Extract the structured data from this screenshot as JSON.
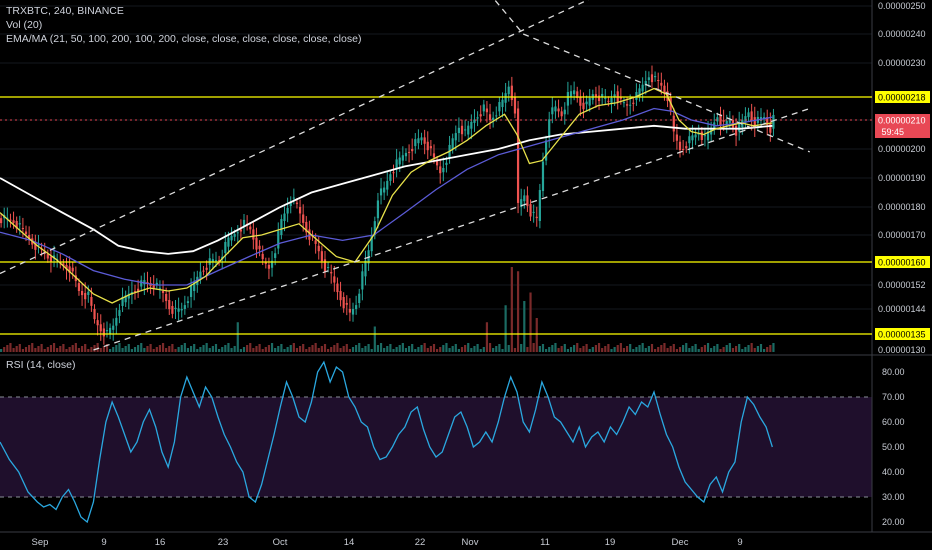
{
  "header": {
    "symbol_line": "TRXBTC, 240, BINANCE",
    "vol_line": "Vol (20)",
    "ema_line": "EMA/MA (21, 50, 100, 200, 100, 200, close, close, close, close, close, close)",
    "rsi_line": "RSI (14, close)"
  },
  "colors": {
    "background": "#000000",
    "bull": "#26a69a",
    "bear": "#ef5350",
    "level": "#ffff00",
    "ema21": "#e8e24a",
    "ema50": "#5b5bd6",
    "ma100": "#ffffff",
    "rsi": "#2aa8e0",
    "current": "#e84855",
    "trend": "#dddddd"
  },
  "chart_data": [
    {
      "type": "candlestick",
      "yticks": [
        "0.00000250",
        "0.00000240",
        "0.00000230",
        "0.00000210",
        "0.00000200",
        "0.00000190",
        "0.00000180",
        "0.00000170",
        "0.00000152",
        "0.00000144",
        "0.00000130"
      ],
      "xticks": [
        "Sep",
        "9",
        "16",
        "23",
        "Oct",
        "14",
        "22",
        "Nov",
        "11",
        "19",
        "Dec",
        "9"
      ],
      "levels": [
        {
          "label": "0.00000218",
          "value": 218
        },
        {
          "label": "0.00000160",
          "value": 160
        },
        {
          "label": "0.00000135",
          "value": 135
        }
      ],
      "current_price": {
        "label": "0.00000210",
        "value": 210,
        "countdown": "59:45"
      },
      "close_path": [
        [
          0,
          176
        ],
        [
          4,
          175
        ],
        [
          8,
          170
        ],
        [
          12,
          165
        ],
        [
          15,
          162
        ],
        [
          18,
          160
        ],
        [
          22,
          158
        ],
        [
          25,
          150
        ],
        [
          28,
          148
        ],
        [
          30,
          140
        ],
        [
          32,
          137
        ],
        [
          34,
          135
        ],
        [
          36,
          138
        ],
        [
          38,
          145
        ],
        [
          42,
          150
        ],
        [
          46,
          153
        ],
        [
          49,
          152
        ],
        [
          52,
          149
        ],
        [
          54,
          145
        ],
        [
          56,
          143
        ],
        [
          58,
          144
        ],
        [
          60,
          148
        ],
        [
          62,
          152
        ],
        [
          64,
          157
        ],
        [
          67,
          160
        ],
        [
          70,
          161
        ],
        [
          73,
          168
        ],
        [
          76,
          172
        ],
        [
          78,
          174
        ],
        [
          80,
          172
        ],
        [
          82,
          166
        ],
        [
          84,
          160
        ],
        [
          86,
          158
        ],
        [
          88,
          165
        ],
        [
          90,
          175
        ],
        [
          93,
          183
        ],
        [
          95,
          180
        ],
        [
          98,
          172
        ],
        [
          100,
          168
        ],
        [
          102,
          164
        ],
        [
          104,
          158
        ],
        [
          106,
          155
        ],
        [
          108,
          150
        ],
        [
          110,
          146
        ],
        [
          112,
          142
        ],
        [
          114,
          146
        ],
        [
          116,
          155
        ],
        [
          118,
          164
        ],
        [
          120,
          176
        ],
        [
          121,
          184
        ],
        [
          123,
          186
        ],
        [
          125,
          192
        ],
        [
          128,
          196
        ],
        [
          130,
          199
        ],
        [
          133,
          202
        ],
        [
          135,
          204
        ],
        [
          137,
          201
        ],
        [
          139,
          196
        ],
        [
          141,
          192
        ],
        [
          143,
          197
        ],
        [
          145,
          203
        ],
        [
          147,
          208
        ],
        [
          149,
          205
        ],
        [
          151,
          209
        ],
        [
          153,
          212
        ],
        [
          155,
          214
        ],
        [
          157,
          210
        ],
        [
          159,
          213
        ],
        [
          161,
          216
        ],
        [
          163,
          222
        ],
        [
          165,
          214
        ],
        [
          166,
          180
        ],
        [
          168,
          184
        ],
        [
          170,
          178
        ],
        [
          172,
          175
        ],
        [
          174,
          196
        ],
        [
          176,
          212
        ],
        [
          178,
          214
        ],
        [
          180,
          212
        ],
        [
          182,
          218
        ],
        [
          184,
          220
        ],
        [
          186,
          216
        ],
        [
          188,
          215
        ],
        [
          190,
          219
        ],
        [
          192,
          218
        ],
        [
          195,
          216
        ],
        [
          197,
          220
        ],
        [
          199,
          216
        ],
        [
          201,
          215
        ],
        [
          204,
          218
        ],
        [
          206,
          222
        ],
        [
          208,
          226
        ],
        [
          210,
          224
        ],
        [
          212,
          222
        ],
        [
          214,
          218
        ],
        [
          216,
          205
        ],
        [
          218,
          200
        ],
        [
          220,
          202
        ],
        [
          222,
          204
        ],
        [
          224,
          206
        ],
        [
          226,
          203
        ],
        [
          228,
          207
        ],
        [
          230,
          212
        ],
        [
          232,
          208
        ],
        [
          234,
          210
        ],
        [
          236,
          206
        ],
        [
          238,
          209
        ],
        [
          240,
          213
        ],
        [
          242,
          209
        ],
        [
          245,
          211
        ],
        [
          247,
          207
        ],
        [
          248,
          210
        ]
      ],
      "ema21": [
        [
          0,
          178
        ],
        [
          6,
          172
        ],
        [
          12,
          166
        ],
        [
          18,
          161
        ],
        [
          24,
          155
        ],
        [
          30,
          149
        ],
        [
          36,
          146
        ],
        [
          42,
          149
        ],
        [
          48,
          151
        ],
        [
          54,
          150
        ],
        [
          60,
          151
        ],
        [
          66,
          155
        ],
        [
          72,
          162
        ],
        [
          78,
          169
        ],
        [
          84,
          170
        ],
        [
          90,
          172
        ],
        [
          96,
          174
        ],
        [
          102,
          168
        ],
        [
          108,
          162
        ],
        [
          114,
          160
        ],
        [
          120,
          170
        ],
        [
          126,
          184
        ],
        [
          132,
          192
        ],
        [
          138,
          196
        ],
        [
          144,
          199
        ],
        [
          150,
          203
        ],
        [
          156,
          208
        ],
        [
          162,
          212
        ],
        [
          166,
          205
        ],
        [
          170,
          195
        ],
        [
          174,
          196
        ],
        [
          180,
          204
        ],
        [
          186,
          212
        ],
        [
          192,
          215
        ],
        [
          198,
          216
        ],
        [
          204,
          218
        ],
        [
          210,
          221
        ],
        [
          214,
          219
        ],
        [
          218,
          210
        ],
        [
          222,
          206
        ],
        [
          226,
          205
        ],
        [
          230,
          207
        ],
        [
          234,
          208
        ],
        [
          238,
          209
        ],
        [
          242,
          208
        ],
        [
          248,
          209
        ]
      ],
      "ema50": [
        [
          0,
          171
        ],
        [
          10,
          168
        ],
        [
          20,
          163
        ],
        [
          30,
          157
        ],
        [
          40,
          154
        ],
        [
          50,
          152
        ],
        [
          60,
          152
        ],
        [
          70,
          157
        ],
        [
          80,
          162
        ],
        [
          90,
          167
        ],
        [
          100,
          170
        ],
        [
          110,
          168
        ],
        [
          120,
          170
        ],
        [
          130,
          178
        ],
        [
          140,
          186
        ],
        [
          150,
          193
        ],
        [
          160,
          198
        ],
        [
          170,
          201
        ],
        [
          180,
          204
        ],
        [
          190,
          207
        ],
        [
          200,
          210
        ],
        [
          210,
          214
        ],
        [
          216,
          213
        ],
        [
          222,
          210
        ],
        [
          230,
          208
        ],
        [
          238,
          209
        ],
        [
          248,
          211
        ]
      ],
      "ma100": [
        [
          0,
          190
        ],
        [
          10,
          184
        ],
        [
          20,
          178
        ],
        [
          30,
          172
        ],
        [
          38,
          166
        ],
        [
          46,
          164
        ],
        [
          54,
          163
        ],
        [
          62,
          164
        ],
        [
          70,
          168
        ],
        [
          80,
          174
        ],
        [
          90,
          180
        ],
        [
          100,
          185
        ],
        [
          110,
          188
        ],
        [
          120,
          191
        ],
        [
          130,
          194
        ],
        [
          140,
          196
        ],
        [
          150,
          198
        ],
        [
          160,
          200
        ],
        [
          170,
          203
        ],
        [
          180,
          205
        ],
        [
          190,
          206
        ],
        [
          200,
          207
        ],
        [
          210,
          208
        ],
        [
          220,
          207
        ],
        [
          230,
          207
        ],
        [
          238,
          207
        ],
        [
          248,
          208
        ]
      ],
      "volume": {
        "spikes": [
          [
            162,
            0.55
          ],
          [
            164,
            1.0
          ],
          [
            166,
            0.95
          ],
          [
            168,
            0.6
          ],
          [
            170,
            0.7
          ],
          [
            172,
            0.4
          ],
          [
            156,
            0.35
          ],
          [
            120,
            0.3
          ],
          [
            76,
            0.35
          ]
        ]
      },
      "trendlines": [
        {
          "from": [
            0,
            156
          ],
          "to": [
            200,
            258
          ]
        },
        {
          "from": [
            30,
            130
          ],
          "to": [
            260,
            214
          ]
        },
        {
          "from": [
            150,
            264
          ],
          "to": [
            168,
            240
          ]
        },
        {
          "from": [
            168,
            240
          ],
          "to": [
            260,
            199
          ]
        }
      ]
    },
    {
      "type": "line",
      "title": "RSI (14, close)",
      "yticks": [
        "80.00",
        "70.00",
        "60.00",
        "50.00",
        "40.00",
        "30.00",
        "20.00"
      ],
      "bands": [
        30,
        70
      ],
      "values": [
        [
          0,
          52
        ],
        [
          3,
          45
        ],
        [
          6,
          40
        ],
        [
          9,
          32
        ],
        [
          12,
          28
        ],
        [
          14,
          26
        ],
        [
          16,
          27
        ],
        [
          18,
          25
        ],
        [
          20,
          30
        ],
        [
          22,
          33
        ],
        [
          24,
          28
        ],
        [
          26,
          22
        ],
        [
          28,
          20
        ],
        [
          30,
          28
        ],
        [
          32,
          45
        ],
        [
          34,
          60
        ],
        [
          36,
          68
        ],
        [
          38,
          62
        ],
        [
          40,
          55
        ],
        [
          42,
          48
        ],
        [
          44,
          52
        ],
        [
          46,
          60
        ],
        [
          48,
          65
        ],
        [
          50,
          58
        ],
        [
          52,
          48
        ],
        [
          54,
          42
        ],
        [
          56,
          52
        ],
        [
          58,
          70
        ],
        [
          60,
          78
        ],
        [
          62,
          72
        ],
        [
          64,
          66
        ],
        [
          66,
          74
        ],
        [
          68,
          70
        ],
        [
          70,
          62
        ],
        [
          72,
          55
        ],
        [
          74,
          50
        ],
        [
          76,
          44
        ],
        [
          78,
          40
        ],
        [
          80,
          30
        ],
        [
          82,
          28
        ],
        [
          84,
          35
        ],
        [
          86,
          45
        ],
        [
          88,
          55
        ],
        [
          90,
          66
        ],
        [
          92,
          76
        ],
        [
          94,
          70
        ],
        [
          96,
          62
        ],
        [
          98,
          60
        ],
        [
          100,
          68
        ],
        [
          102,
          80
        ],
        [
          104,
          84
        ],
        [
          106,
          76
        ],
        [
          108,
          82
        ],
        [
          110,
          80
        ],
        [
          112,
          70
        ],
        [
          114,
          66
        ],
        [
          116,
          60
        ],
        [
          118,
          58
        ],
        [
          120,
          50
        ],
        [
          122,
          45
        ],
        [
          124,
          46
        ],
        [
          126,
          50
        ],
        [
          128,
          55
        ],
        [
          130,
          58
        ],
        [
          132,
          64
        ],
        [
          134,
          66
        ],
        [
          136,
          57
        ],
        [
          138,
          50
        ],
        [
          140,
          46
        ],
        [
          142,
          48
        ],
        [
          144,
          55
        ],
        [
          146,
          62
        ],
        [
          148,
          64
        ],
        [
          150,
          58
        ],
        [
          152,
          50
        ],
        [
          154,
          52
        ],
        [
          156,
          56
        ],
        [
          158,
          52
        ],
        [
          160,
          60
        ],
        [
          162,
          70
        ],
        [
          164,
          78
        ],
        [
          166,
          72
        ],
        [
          168,
          60
        ],
        [
          170,
          56
        ],
        [
          172,
          65
        ],
        [
          174,
          76
        ],
        [
          176,
          70
        ],
        [
          178,
          62
        ],
        [
          180,
          60
        ],
        [
          182,
          56
        ],
        [
          184,
          52
        ],
        [
          186,
          58
        ],
        [
          188,
          50
        ],
        [
          190,
          54
        ],
        [
          192,
          56
        ],
        [
          194,
          52
        ],
        [
          196,
          58
        ],
        [
          198,
          55
        ],
        [
          200,
          60
        ],
        [
          202,
          66
        ],
        [
          204,
          63
        ],
        [
          206,
          68
        ],
        [
          208,
          66
        ],
        [
          210,
          72
        ],
        [
          212,
          63
        ],
        [
          214,
          55
        ],
        [
          216,
          50
        ],
        [
          218,
          42
        ],
        [
          220,
          36
        ],
        [
          222,
          33
        ],
        [
          224,
          30
        ],
        [
          226,
          28
        ],
        [
          228,
          35
        ],
        [
          230,
          38
        ],
        [
          232,
          32
        ],
        [
          234,
          40
        ],
        [
          236,
          44
        ],
        [
          238,
          60
        ],
        [
          240,
          70
        ],
        [
          242,
          67
        ],
        [
          244,
          62
        ],
        [
          246,
          58
        ],
        [
          248,
          50
        ]
      ]
    }
  ]
}
